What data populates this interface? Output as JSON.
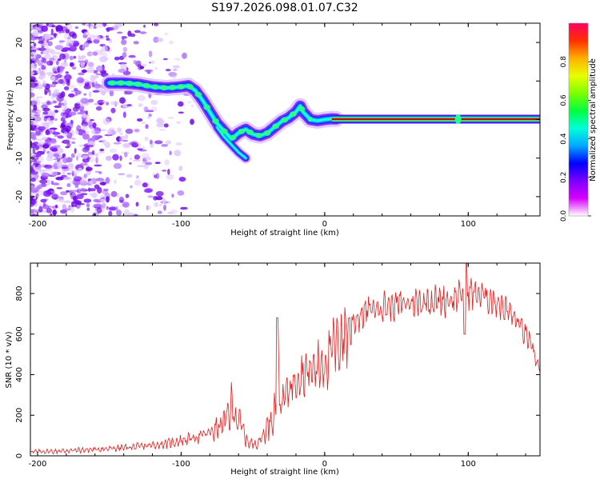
{
  "title": "S197.2026.098.01.07.C32",
  "chart_data": [
    {
      "type": "heatmap",
      "name": "spectrogram",
      "xlabel": "Height of straight line (km)",
      "ylabel": "Frequency (Hz)",
      "xlim": [
        -205,
        150
      ],
      "ylim": [
        -25,
        25
      ],
      "xticks": [
        -200,
        -100,
        0,
        100
      ],
      "yticks": [
        -20,
        -10,
        0,
        10,
        20
      ],
      "ridge": {
        "x": [
          -150,
          -140,
          -130,
          -120,
          -110,
          -100,
          -95,
          -90,
          -85,
          -80,
          -75,
          -70,
          -65,
          -60,
          -55,
          -50,
          -45,
          -40,
          -35,
          -30,
          -25,
          -20,
          -17,
          -15,
          -12,
          -10,
          -5,
          0,
          5,
          10,
          20,
          40,
          60,
          80,
          90,
          95,
          100,
          120,
          150
        ],
        "y": [
          9.5,
          9.5,
          9.2,
          8.5,
          8.2,
          8.5,
          8.8,
          7.5,
          5,
          2,
          -1,
          -3,
          -5,
          -3.5,
          -2.5,
          -3.8,
          -4.2,
          -3.5,
          -2,
          -0.5,
          0.5,
          2,
          3.5,
          2,
          0.8,
          0,
          -0.3,
          0,
          0.2,
          0.1,
          0.1,
          0.1,
          0.1,
          0.1,
          0.1,
          0.1,
          0.1,
          0.1,
          0.1
        ]
      },
      "side_branch": {
        "x": [
          -75,
          -70,
          -65,
          -60,
          -55
        ],
        "y": [
          -2,
          -4.5,
          -6.5,
          -8.5,
          -10
        ]
      }
    },
    {
      "type": "colorbar",
      "label": "Normalized spectral amplitude",
      "range": [
        0,
        1
      ],
      "ticks": [
        "0.0",
        "0.2",
        "0.4",
        "0.6",
        "0.8"
      ],
      "tick_values": [
        0,
        0.2,
        0.4,
        0.6,
        0.8
      ],
      "colors": [
        "#ffffff",
        "#d800ff",
        "#7a00ff",
        "#0000ff",
        "#00a8ff",
        "#00ffd8",
        "#00ff40",
        "#7cff00",
        "#e8ff00",
        "#ffb000",
        "#ff3000",
        "#ff0064"
      ]
    },
    {
      "type": "line",
      "name": "snr",
      "xlabel": "Height of straight line (km)",
      "ylabel": "SNR (10 * v/v)",
      "xlim": [
        -205,
        150
      ],
      "ylim": [
        0,
        950
      ],
      "xticks": [
        -200,
        -100,
        0,
        100
      ],
      "yticks": [
        0,
        200,
        400,
        600,
        800
      ],
      "color": "#e02020",
      "x": [
        -205,
        -190,
        -170,
        -150,
        -130,
        -110,
        -100,
        -90,
        -80,
        -75,
        -70,
        -65,
        -62,
        -58,
        -55,
        -50,
        -45,
        -40,
        -35,
        -32,
        -30,
        -28,
        -25,
        -20,
        -15,
        -10,
        -5,
        0,
        5,
        10,
        15,
        20,
        25,
        30,
        40,
        50,
        60,
        70,
        80,
        90,
        95,
        100,
        105,
        110,
        120,
        130,
        140,
        150
      ],
      "y": [
        20,
        22,
        28,
        35,
        45,
        60,
        75,
        90,
        115,
        135,
        160,
        240,
        200,
        150,
        80,
        55,
        75,
        140,
        220,
        320,
        260,
        290,
        330,
        390,
        410,
        420,
        440,
        460,
        520,
        560,
        610,
        660,
        690,
        720,
        735,
        745,
        755,
        760,
        765,
        775,
        790,
        810,
        800,
        790,
        760,
        700,
        600,
        430
      ]
    }
  ]
}
